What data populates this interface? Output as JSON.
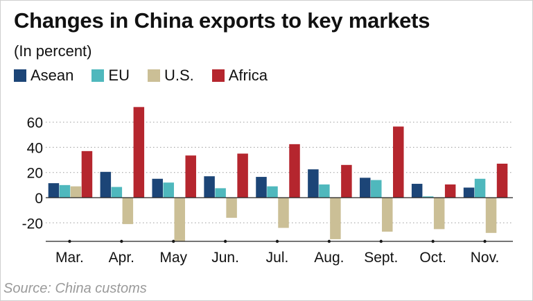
{
  "chart_data": {
    "type": "bar",
    "title": "Changes in China exports to key markets",
    "subtitle": "(In percent)",
    "xlabel": "",
    "ylabel": "",
    "categories": [
      "Mar.",
      "Apr.",
      "May",
      "Jun.",
      "Jul.",
      "Aug.",
      "Sept.",
      "Oct.",
      "Nov."
    ],
    "series": [
      {
        "name": "Asean",
        "color": "#1c4577",
        "values": [
          11.5,
          20.5,
          15,
          17,
          16.5,
          22.5,
          15.8,
          11,
          8
        ]
      },
      {
        "name": "EU",
        "color": "#4fb8bd",
        "values": [
          10,
          8.5,
          12,
          7.5,
          9,
          10.5,
          14,
          1,
          15
        ]
      },
      {
        "name": "U.S.",
        "color": "#cbbf96",
        "values": [
          9,
          -21,
          -35,
          -16,
          -24,
          -33,
          -27,
          -25,
          -28
        ]
      },
      {
        "name": "Africa",
        "color": "#b5262e",
        "values": [
          37,
          72,
          33.5,
          35,
          42.5,
          26,
          56.5,
          10.5,
          27
        ]
      }
    ],
    "yticks": [
      60,
      40,
      20,
      0,
      -20
    ],
    "ytick_labels": [
      "60",
      "40",
      "20",
      "0",
      "-20"
    ],
    "ylim": [
      -35,
      72
    ],
    "grid": true,
    "legend_position": "top-left",
    "source": "Source: China customs"
  }
}
